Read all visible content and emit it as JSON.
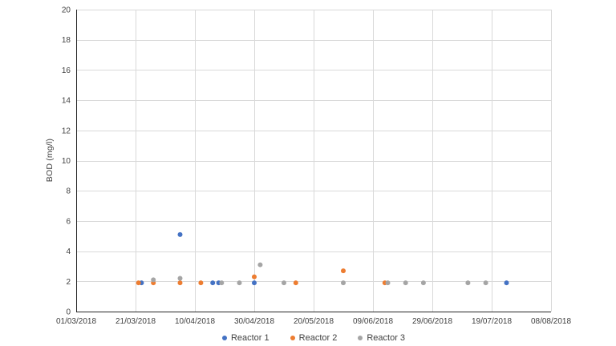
{
  "chart_data": {
    "type": "scatter",
    "title": "",
    "xlabel": "",
    "ylabel": "BOD (mg/l)",
    "ylim": [
      0,
      20
    ],
    "y_tick_step": 2,
    "x_ticks": [
      "01/03/2018",
      "21/03/2018",
      "10/04/2018",
      "30/04/2018",
      "20/05/2018",
      "09/06/2018",
      "29/06/2018",
      "19/07/2018",
      "08/08/2018"
    ],
    "grid": true,
    "legend_position": "bottom",
    "marker": "circle",
    "style": {
      "grid_color": "#D9D9D9",
      "axis_color": "#262626",
      "label_color": "#404040",
      "background": "#FFFFFF"
    },
    "series": [
      {
        "name": "Reactor 1",
        "color": "#4472C4",
        "points": [
          {
            "date": "23/03/2018",
            "value": 1.9
          },
          {
            "date": "05/04/2018",
            "value": 5.1
          },
          {
            "date": "16/04/2018",
            "value": 1.9
          },
          {
            "date": "18/04/2018",
            "value": 1.9
          },
          {
            "date": "30/04/2018",
            "value": 1.9
          },
          {
            "date": "24/07/2018",
            "value": 1.9
          }
        ]
      },
      {
        "name": "Reactor 2",
        "color": "#ED7D31",
        "points": [
          {
            "date": "22/03/2018",
            "value": 1.9
          },
          {
            "date": "27/03/2018",
            "value": 1.9
          },
          {
            "date": "05/04/2018",
            "value": 1.9
          },
          {
            "date": "12/04/2018",
            "value": 1.9
          },
          {
            "date": "30/04/2018",
            "value": 2.3
          },
          {
            "date": "14/05/2018",
            "value": 1.9
          },
          {
            "date": "30/05/2018",
            "value": 2.7
          },
          {
            "date": "13/06/2018",
            "value": 1.9
          }
        ]
      },
      {
        "name": "Reactor 3",
        "color": "#A5A5A5",
        "points": [
          {
            "date": "27/03/2018",
            "value": 2.1
          },
          {
            "date": "05/04/2018",
            "value": 2.2
          },
          {
            "date": "19/04/2018",
            "value": 1.9
          },
          {
            "date": "25/04/2018",
            "value": 1.9
          },
          {
            "date": "02/05/2018",
            "value": 3.1
          },
          {
            "date": "10/05/2018",
            "value": 1.9
          },
          {
            "date": "30/05/2018",
            "value": 1.9
          },
          {
            "date": "14/06/2018",
            "value": 1.9
          },
          {
            "date": "20/06/2018",
            "value": 1.9
          },
          {
            "date": "26/06/2018",
            "value": 1.9
          },
          {
            "date": "11/07/2018",
            "value": 1.9
          },
          {
            "date": "17/07/2018",
            "value": 1.9
          }
        ]
      }
    ]
  }
}
